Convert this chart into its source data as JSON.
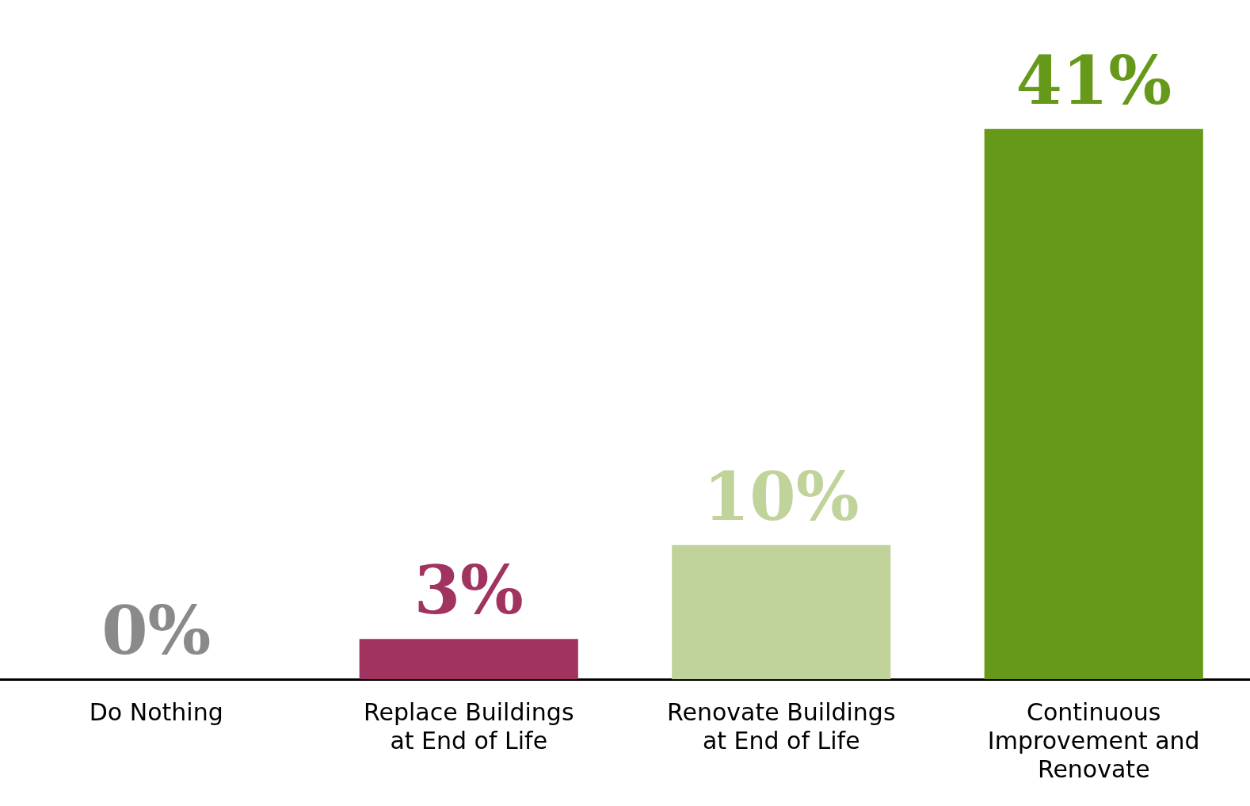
{
  "chart_data": {
    "type": "bar",
    "categories": [
      "Do Nothing",
      "Replace Buildings at End of Life",
      "Renovate Buildings at End of Life",
      "Continuous Improvement and Renovate"
    ],
    "values": [
      0,
      3,
      10,
      41
    ],
    "colors": [
      "#8a8a8a",
      "#a0335f",
      "#c0d39a",
      "#66991a"
    ],
    "value_labels": [
      "0%",
      "3%",
      "10%",
      "41%"
    ],
    "tick_labels": "x",
    "grid": false,
    "legend": false
  }
}
